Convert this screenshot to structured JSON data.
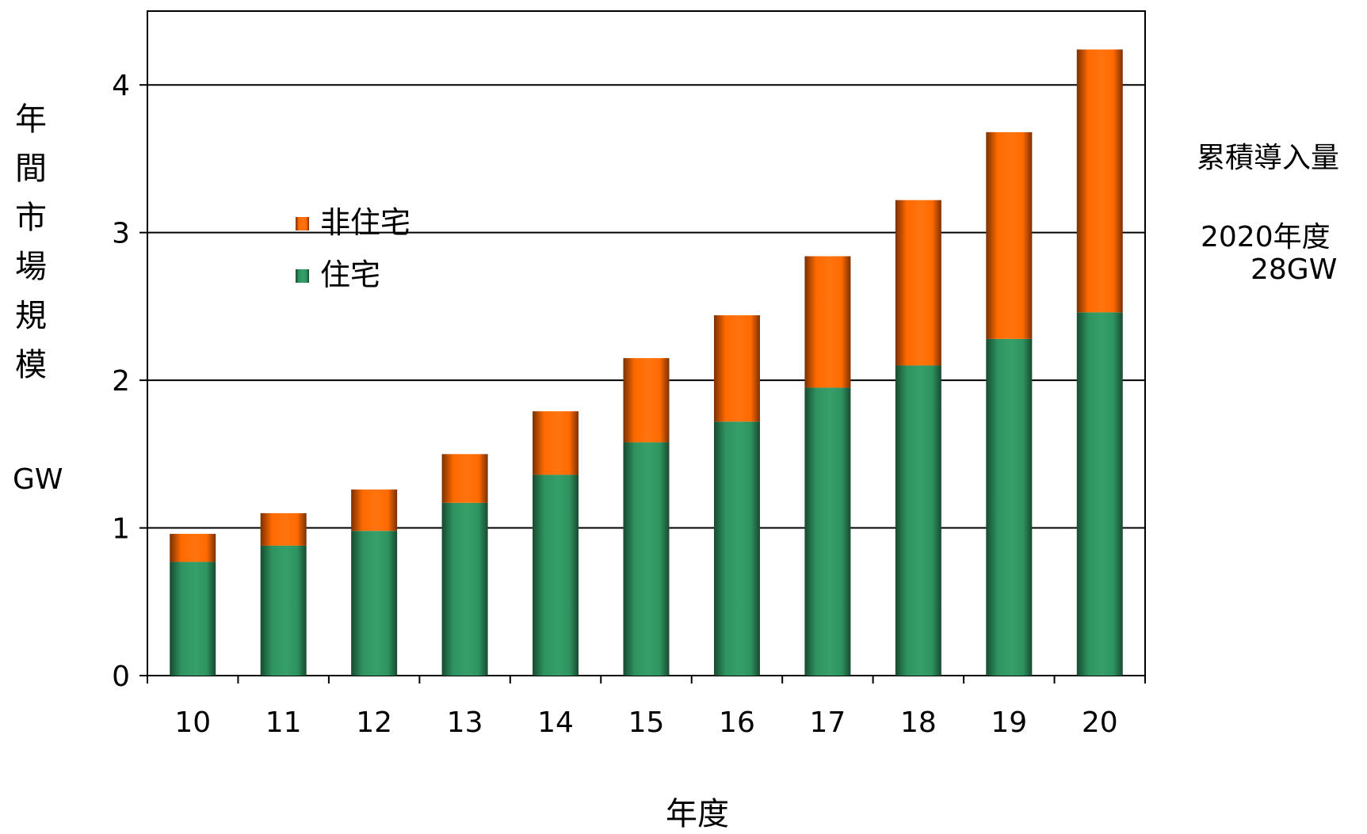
{
  "chart_data": {
    "type": "bar",
    "stacked": true,
    "title": "",
    "ylabel": "年間市場規模",
    "yunit": "GW",
    "xlabel": "年度",
    "categories": [
      "10",
      "11",
      "12",
      "13",
      "14",
      "15",
      "16",
      "17",
      "18",
      "19",
      "20"
    ],
    "series": [
      {
        "name": "住宅",
        "color": "#2e9360",
        "values": [
          0.77,
          0.88,
          0.98,
          1.17,
          1.36,
          1.58,
          1.72,
          1.95,
          2.1,
          2.28,
          2.46
        ]
      },
      {
        "name": "非住宅",
        "color": "#ff6a00",
        "values": [
          0.19,
          0.22,
          0.28,
          0.33,
          0.43,
          0.57,
          0.72,
          0.89,
          1.12,
          1.4,
          1.78
        ]
      }
    ],
    "ylim": [
      0,
      4.5
    ],
    "yticks": [
      0,
      1,
      2,
      3,
      4
    ],
    "grid": true,
    "legend": "upper-left (inside plot)",
    "annotation": {
      "title": "累積導入量",
      "year": "2020年度",
      "value": "28GW"
    }
  }
}
